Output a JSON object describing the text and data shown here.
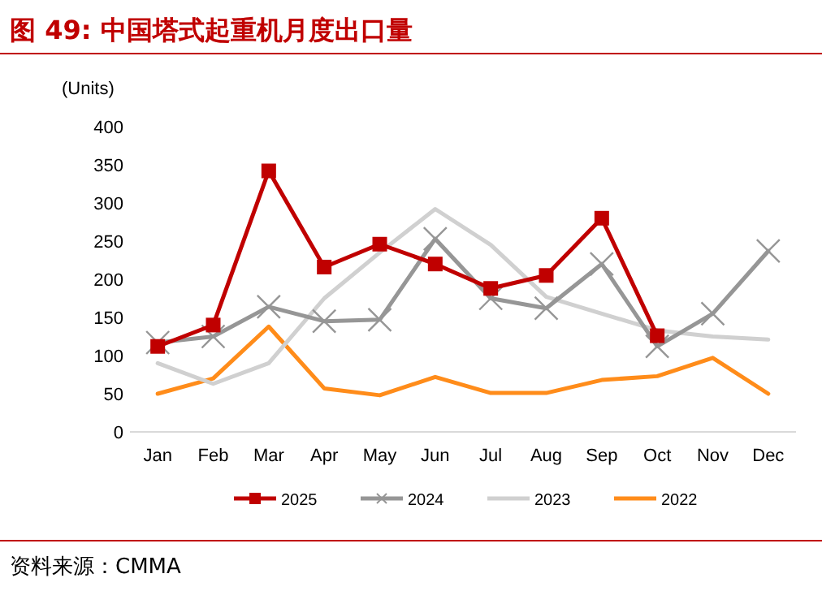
{
  "chart_data": {
    "type": "line",
    "title": "图 49: 中国塔式起重机月度出口量",
    "ylabel": "(Units)",
    "annotations": [
      "资料来源：CMMA"
    ],
    "categories": [
      "Jan",
      "Feb",
      "Mar",
      "Apr",
      "May",
      "Jun",
      "Jul",
      "Aug",
      "Sep",
      "Oct",
      "Nov",
      "Dec"
    ],
    "ylim": [
      0,
      400
    ],
    "yticks": [
      0,
      50,
      100,
      150,
      200,
      250,
      300,
      350,
      400
    ],
    "grid": false,
    "legend": "bottom",
    "line_style": "solid",
    "series": [
      {
        "name": "2025",
        "color": "#c00000",
        "marker": "square",
        "values": [
          112,
          140,
          342,
          216,
          246,
          220,
          188,
          205,
          280,
          126,
          null,
          null
        ]
      },
      {
        "name": "2024",
        "color": "#969696",
        "marker": "cross",
        "values": [
          117,
          125,
          164,
          145,
          147,
          253,
          175,
          162,
          220,
          112,
          155,
          237
        ]
      },
      {
        "name": "2023",
        "color": "#d0d0d0",
        "marker": "none",
        "values": [
          90,
          63,
          90,
          175,
          235,
          292,
          245,
          177,
          155,
          133,
          125,
          121
        ]
      },
      {
        "name": "2022",
        "color": "#ff8c1a",
        "marker": "none",
        "values": [
          50,
          70,
          138,
          57,
          48,
          72,
          51,
          51,
          68,
          73,
          97,
          50
        ]
      }
    ]
  }
}
